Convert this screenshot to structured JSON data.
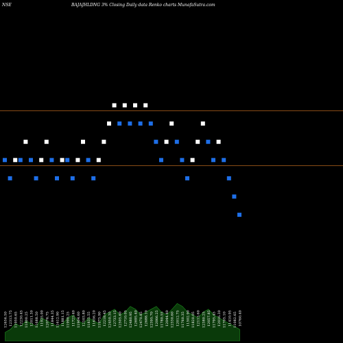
{
  "header": {
    "exchange": "NSE",
    "title": "BAJAJHLDNG 3% Closing Daily data Renko charts MunafaSutra.com"
  },
  "colors": {
    "background": "#000000",
    "up_brick": "#ffffff",
    "down_brick": "#1e6fe8",
    "ref_line": "#b5651d",
    "volume_fill": "#0a3a0a",
    "volume_line": "#1e8c1e"
  },
  "chart_data": {
    "type": "renko",
    "brick_size_percent": 3,
    "reference_lines": [
      12400,
      11350
    ],
    "bricks": [
      {
        "dir": "down",
        "price": 11450
      },
      {
        "dir": "down",
        "price": 11100
      },
      {
        "dir": "up",
        "price": 11450
      },
      {
        "dir": "down",
        "price": 11450
      },
      {
        "dir": "up",
        "price": 11800
      },
      {
        "dir": "down",
        "price": 11450
      },
      {
        "dir": "down",
        "price": 11100
      },
      {
        "dir": "up",
        "price": 11450
      },
      {
        "dir": "up",
        "price": 11800
      },
      {
        "dir": "down",
        "price": 11450
      },
      {
        "dir": "down",
        "price": 11100
      },
      {
        "dir": "up",
        "price": 11450
      },
      {
        "dir": "down",
        "price": 11450
      },
      {
        "dir": "down",
        "price": 11100
      },
      {
        "dir": "up",
        "price": 11450
      },
      {
        "dir": "up",
        "price": 11800
      },
      {
        "dir": "down",
        "price": 11450
      },
      {
        "dir": "down",
        "price": 11100
      },
      {
        "dir": "up",
        "price": 11450
      },
      {
        "dir": "up",
        "price": 11800
      },
      {
        "dir": "up",
        "price": 12150
      },
      {
        "dir": "up",
        "price": 12500
      },
      {
        "dir": "down",
        "price": 12150
      },
      {
        "dir": "up",
        "price": 12500
      },
      {
        "dir": "down",
        "price": 12150
      },
      {
        "dir": "up",
        "price": 12500
      },
      {
        "dir": "down",
        "price": 12150
      },
      {
        "dir": "up",
        "price": 12500
      },
      {
        "dir": "down",
        "price": 12150
      },
      {
        "dir": "down",
        "price": 11800
      },
      {
        "dir": "down",
        "price": 11450
      },
      {
        "dir": "up",
        "price": 11800
      },
      {
        "dir": "up",
        "price": 12150
      },
      {
        "dir": "down",
        "price": 11800
      },
      {
        "dir": "down",
        "price": 11450
      },
      {
        "dir": "down",
        "price": 11100
      },
      {
        "dir": "up",
        "price": 11450
      },
      {
        "dir": "up",
        "price": 11800
      },
      {
        "dir": "up",
        "price": 12150
      },
      {
        "dir": "down",
        "price": 11800
      },
      {
        "dir": "down",
        "price": 11450
      },
      {
        "dir": "up",
        "price": 11800
      },
      {
        "dir": "down",
        "price": 11450
      },
      {
        "dir": "down",
        "price": 11100
      },
      {
        "dir": "down",
        "price": 10750
      },
      {
        "dir": "down",
        "price": 10400
      }
    ],
    "volume_labels": [
      "12656.50",
      "12313.75",
      "11950.65",
      "12230.45",
      "11800.25",
      "12011.30",
      "11688.50",
      "11925.00",
      "12076.75",
      "11844.35",
      "11612.90",
      "11881.15",
      "11990.25",
      "11725.40",
      "11904.60",
      "12103.80",
      "11835.55",
      "11656.20",
      "11975.90",
      "12218.45",
      "12450.30",
      "12733.15",
      "12505.60",
      "12710.05",
      "12480.95",
      "12695.40",
      "12470.85",
      "12688.10",
      "12395.70",
      "12066.25",
      "11780.55",
      "12044.40",
      "12330.60",
      "12012.75",
      "11760.35",
      "11502.90",
      "11820.05",
      "12113.60",
      "12380.25",
      "12057.85",
      "11795.45",
      "12016.30",
      "11705.10",
      "11410.95",
      "11082.65",
      "10760.40"
    ],
    "volume_values": [
      3,
      4,
      6,
      5,
      7,
      6,
      5,
      8,
      7,
      6,
      5,
      6,
      8,
      9,
      7,
      6,
      8,
      7,
      6,
      9,
      10,
      11,
      9,
      10,
      12,
      11,
      9,
      10,
      11,
      12,
      10,
      9,
      11,
      13,
      12,
      10,
      9,
      8,
      10,
      11,
      9,
      8,
      7,
      6,
      5,
      4
    ],
    "ylim": [
      9000,
      14000
    ]
  }
}
